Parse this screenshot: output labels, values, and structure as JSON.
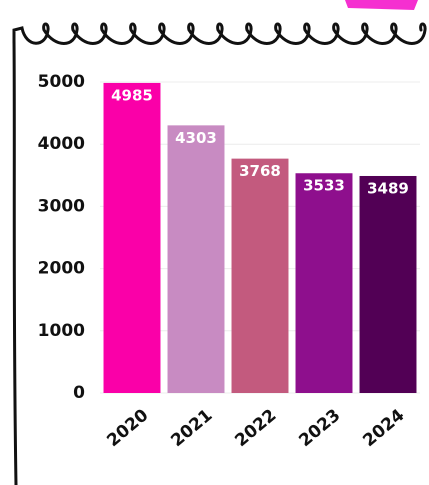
{
  "chart_data": {
    "type": "bar",
    "categories": [
      "2020",
      "2021",
      "2022",
      "2023",
      "2024"
    ],
    "values": [
      4985,
      4303,
      3768,
      3533,
      3489
    ],
    "colors": [
      "#fa00a8",
      "#c88bc2",
      "#c35a7e",
      "#8e0f8d",
      "#520055"
    ],
    "ylim": [
      0,
      5000
    ],
    "yticks": [
      0,
      1000,
      2000,
      3000,
      4000,
      5000
    ],
    "grid": true
  }
}
